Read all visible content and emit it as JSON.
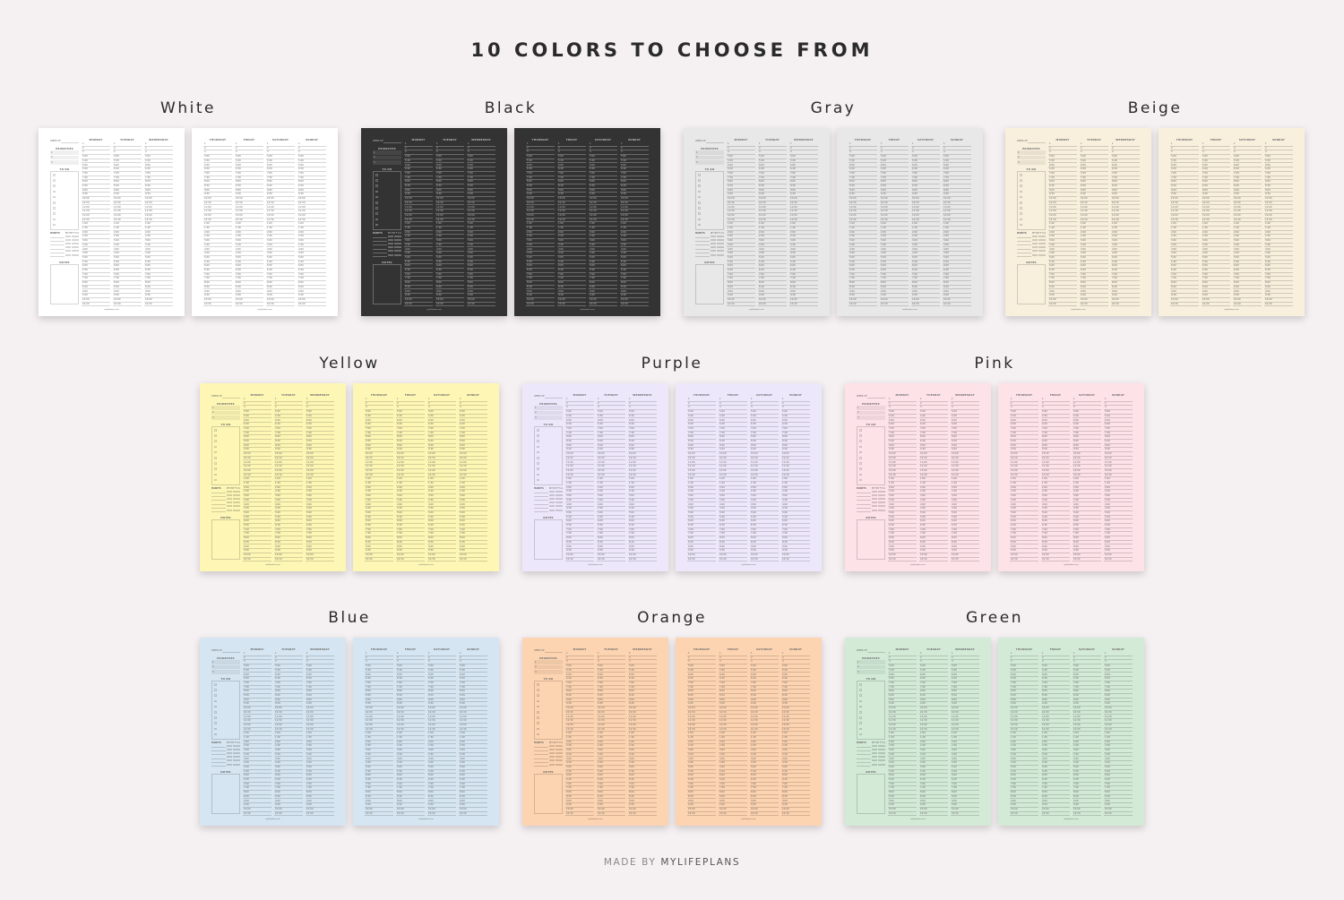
{
  "title": "10 COLORS TO CHOOSE FROM",
  "footer": {
    "prefix": "MADE BY ",
    "brand": "MYLIFEPLANS"
  },
  "colors": [
    {
      "name": "White",
      "bg": "#ffffff",
      "dark": false
    },
    {
      "name": "Black",
      "bg": "#333333",
      "dark": true
    },
    {
      "name": "Gray",
      "bg": "#e9e8e8",
      "dark": false
    },
    {
      "name": "Beige",
      "bg": "#f8efdc",
      "dark": false
    },
    {
      "name": "Yellow",
      "bg": "#fdf6b5",
      "dark": false
    },
    {
      "name": "Purple",
      "bg": "#ede7fb",
      "dark": false
    },
    {
      "name": "Pink",
      "bg": "#fde2e8",
      "dark": false
    },
    {
      "name": "Blue",
      "bg": "#d5e5f1",
      "dark": false
    },
    {
      "name": "Orange",
      "bg": "#fdd4b1",
      "dark": false
    },
    {
      "name": "Green",
      "bg": "#d3ead7",
      "dark": false
    }
  ],
  "planner": {
    "week_of": "WEEK OF",
    "priorities": "PRIORITIES",
    "todo": "TO DO",
    "habits": "HABITS",
    "habit_days": [
      "M",
      "T",
      "W",
      "T",
      "F",
      "S",
      "S"
    ],
    "notes": "NOTES",
    "days_left": [
      "MONDAY",
      "TUESDAY",
      "WEDNESDAY"
    ],
    "days_right": [
      "THURSDAY",
      "FRIDAY",
      "SATURDAY",
      "SUNDAY"
    ],
    "numbered": [
      "1",
      "2",
      "3"
    ],
    "times": [
      "5:00",
      "5:30",
      "6:00",
      "6:30",
      "7:00",
      "7:30",
      "8:00",
      "8:30",
      "9:00",
      "9:30",
      "10:00",
      "10:30",
      "11:00",
      "11:30",
      "12:00",
      "12:30",
      "1:00",
      "1:30",
      "2:00",
      "2:30",
      "3:00",
      "3:30",
      "4:00",
      "4:30",
      "5:00",
      "5:30",
      "6:00",
      "6:30",
      "7:00",
      "7:30",
      "8:00",
      "8:30",
      "9:00",
      "9:30",
      "10:00",
      "10:30"
    ],
    "page_footer": "mylifeplans.com"
  }
}
